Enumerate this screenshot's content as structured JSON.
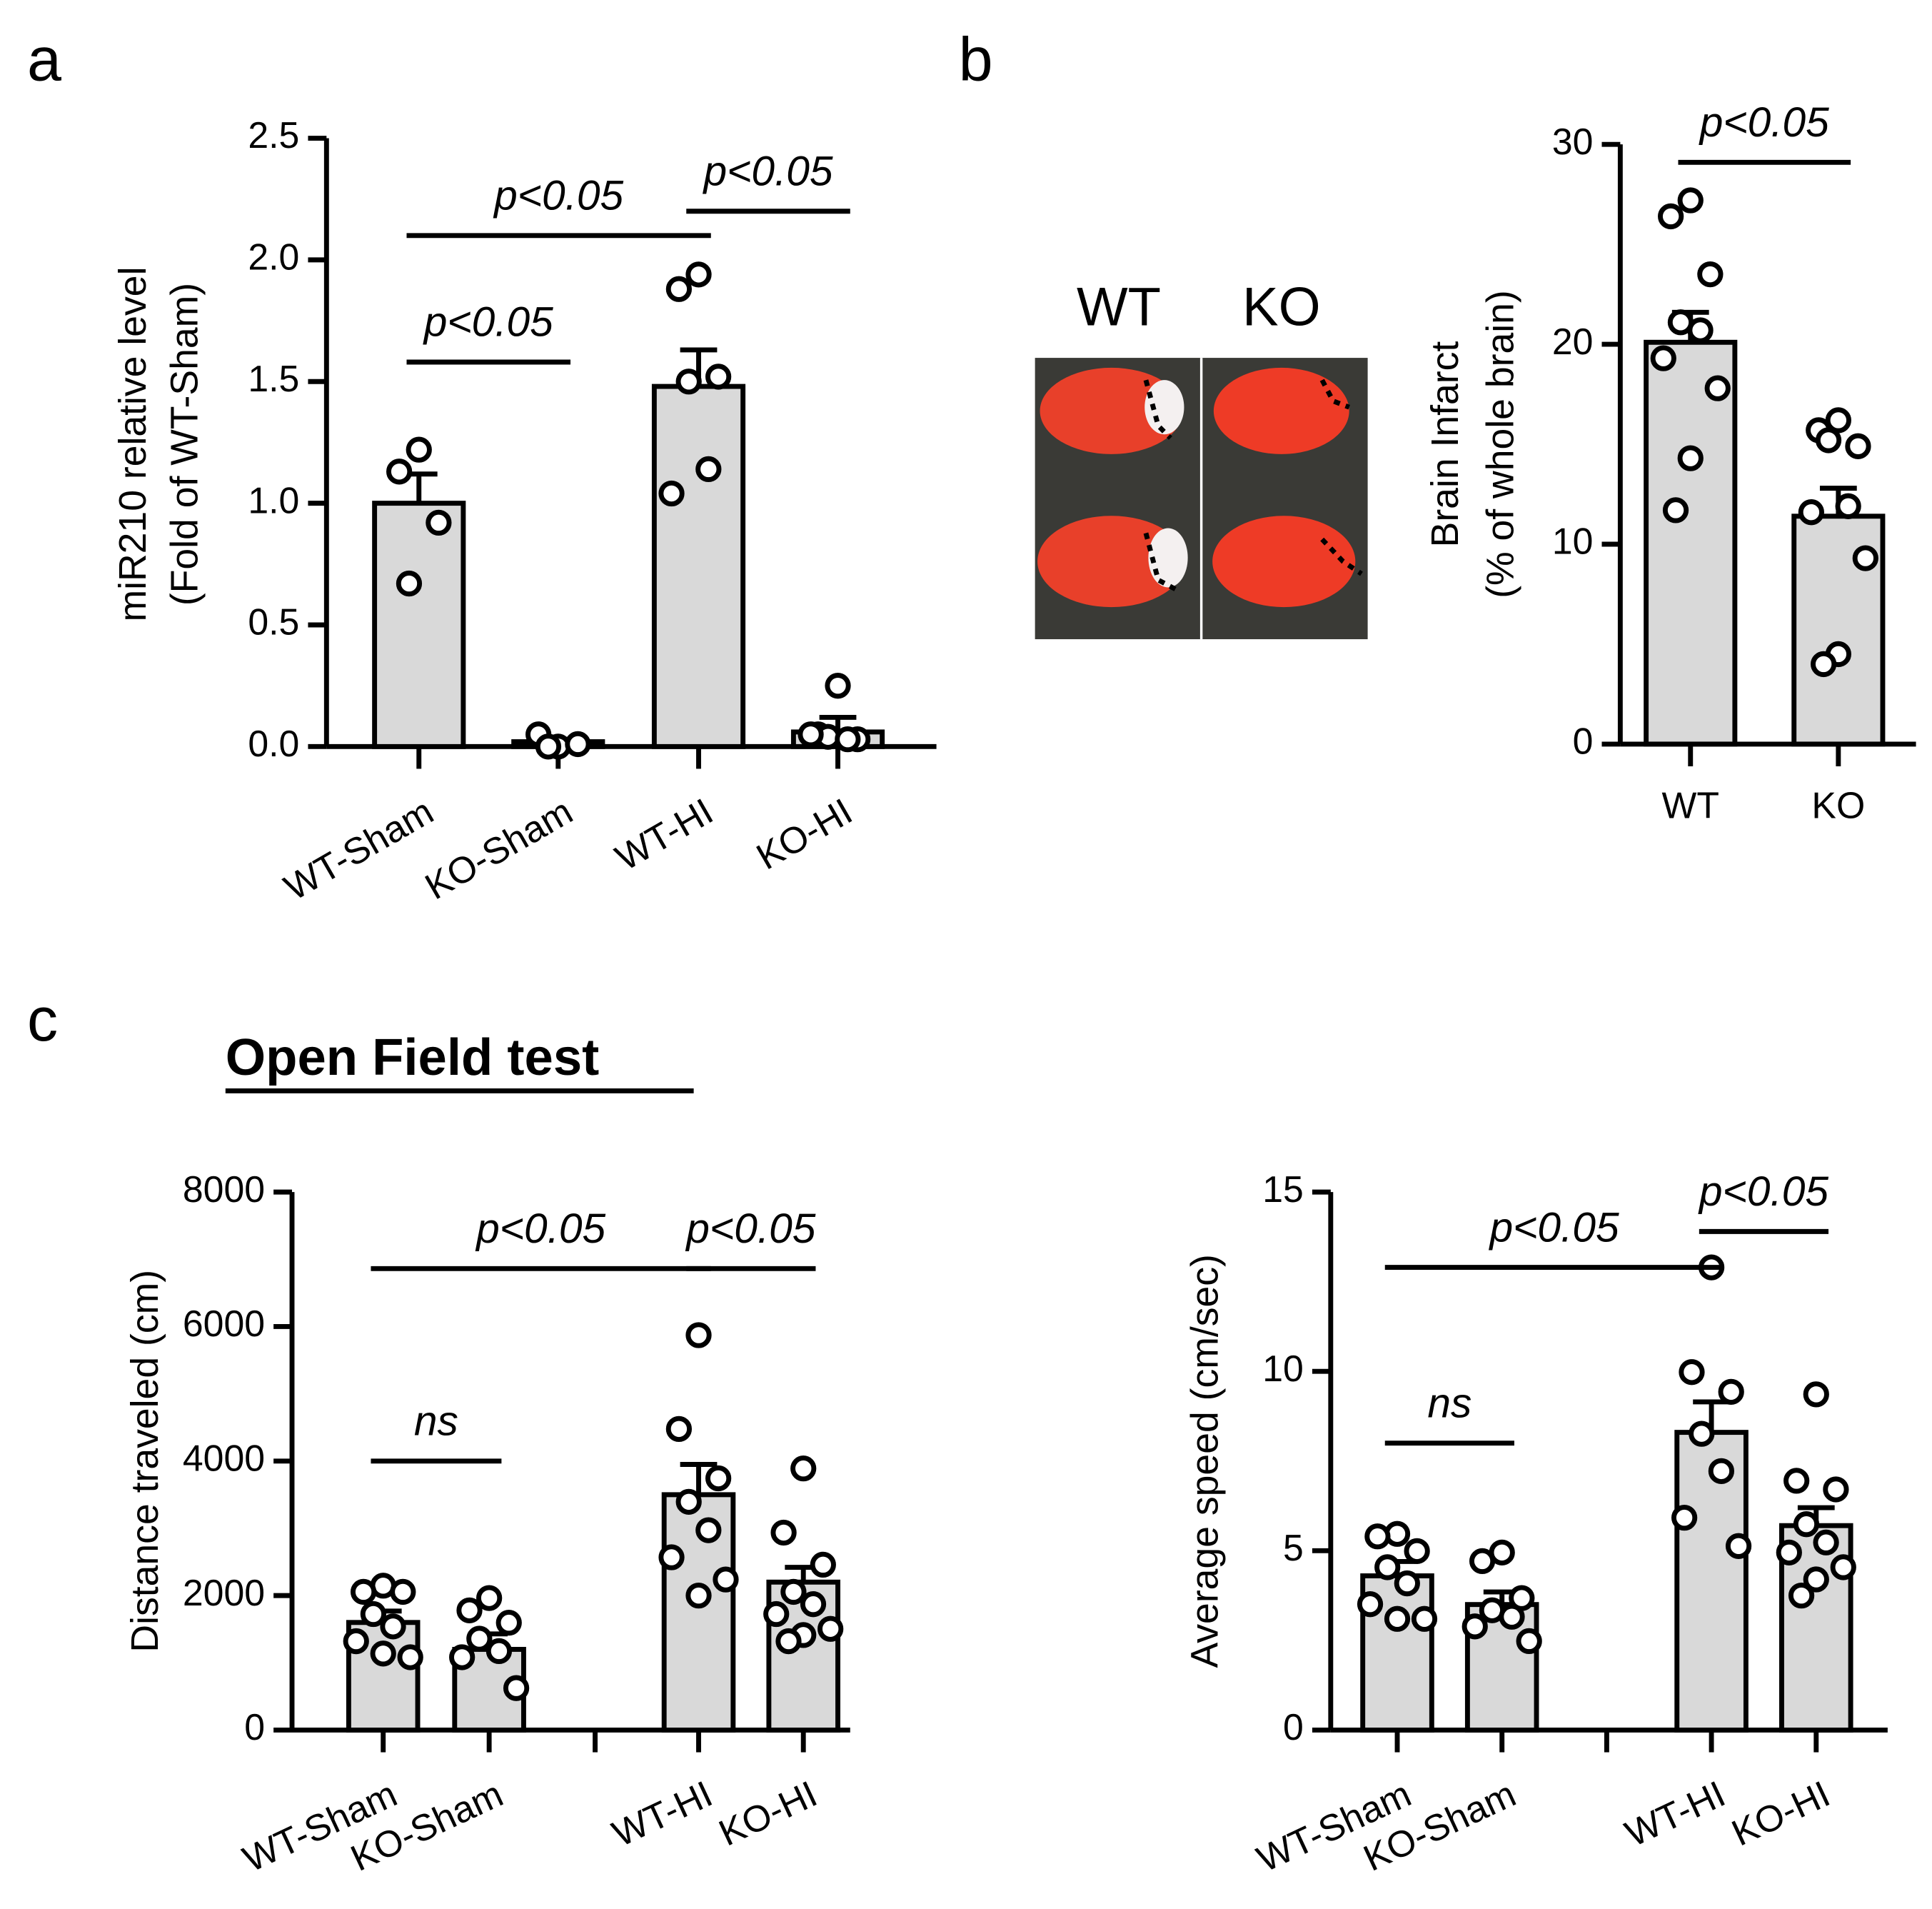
{
  "section_title": "Open Field test",
  "image_labels": [
    "WT",
    "KO"
  ],
  "chart_data": [
    {
      "panel": "a",
      "type": "bar",
      "color": "#d9d9d9",
      "ylabel": [
        "miR210 relative level",
        "(Fold of WT-Sham)"
      ],
      "categories": [
        "WT-Sham",
        "KO-Sham",
        "WT-HI",
        "KO-HI"
      ],
      "values": [
        1.0,
        0.02,
        1.48,
        0.06
      ],
      "errors": [
        0.12,
        0.01,
        0.15,
        0.06
      ],
      "points": [
        [
          1.22,
          1.13,
          0.92,
          0.67
        ],
        [
          0.0,
          0.05,
          0.01,
          0.0
        ],
        [
          1.94,
          1.88,
          1.52,
          1.5,
          1.14,
          1.04
        ],
        [
          0.25,
          0.05,
          0.03,
          0.04,
          0.03,
          0.05
        ]
      ],
      "ylim": [
        0,
        2.5
      ],
      "yticks": [
        {
          "value": 0,
          "label": "0.0"
        },
        0.5,
        {
          "value": 1,
          "label": "1.0"
        },
        1.5,
        {
          "value": 2,
          "label": "2.0"
        },
        2.5
      ],
      "annotations": [
        {
          "label": "p<0.05",
          "from": 0,
          "to": 2,
          "y": 2.1
        },
        {
          "label": "p<0.05",
          "from": 0,
          "to": 1,
          "y": 1.58
        },
        {
          "label": "p<0.05",
          "from": 2,
          "to": 3,
          "y": 2.2
        }
      ]
    },
    {
      "panel": "b",
      "type": "bar",
      "color": "#d9d9d9",
      "ylabel": [
        "Brain Infarct",
        "(% of whole brain)"
      ],
      "categories": [
        "WT",
        "KO"
      ],
      "values": [
        20.1,
        11.4
      ],
      "errors": [
        1.5,
        1.4
      ],
      "points": [
        [
          27.2,
          26.4,
          23.5,
          21.1,
          20.7,
          19.3,
          17.8,
          14.3,
          11.7
        ],
        [
          16.2,
          15.7,
          14.9,
          15.2,
          11.9,
          11.6,
          9.3,
          4.5,
          4.0
        ]
      ],
      "ylim": [
        0,
        30
      ],
      "yticks": [
        0,
        10,
        20,
        30
      ],
      "annotations": [
        {
          "label": "p<0.05",
          "from": 0,
          "to": 1,
          "y": 29.1
        }
      ]
    },
    {
      "panel": "c",
      "type": "bar",
      "color": "#d9d9d9",
      "ylabel": [
        "Distance traveled (cm)"
      ],
      "categories": [
        "WT-Sham",
        "KO-Sham",
        null,
        "WT-HI",
        "KO-HI"
      ],
      "values": [
        1600,
        1200,
        null,
        3500,
        2200
      ],
      "errors": [
        170,
        230,
        null,
        450,
        220
      ],
      "points": [
        [
          2147,
          2055,
          2055,
          1725,
          1541,
          1321,
          1083,
          1138
        ],
        [
          1963,
          1780,
          1596,
          1358,
          1174,
          1083,
          624
        ],
        [],
        [
          5872,
          4477,
          3743,
          3394,
          2972,
          2569,
          2239,
          2000
        ],
        [
          3890,
          2936,
          2459,
          2055,
          1872,
          1725,
          1505,
          1413,
          1321
        ]
      ],
      "ylim": [
        0,
        8000
      ],
      "yticks": [
        0,
        2000,
        4000,
        6000,
        8000
      ],
      "annotations": [
        {
          "label": "p<0.05",
          "from": 0,
          "to": 3,
          "y": 6862
        },
        {
          "label": "p<0.05",
          "from": 3,
          "to": 4,
          "y": 6862
        },
        {
          "label": "ns",
          "from": 0,
          "to": 1,
          "y": 4000
        }
      ]
    },
    {
      "type": "bar",
      "color": "#d9d9d9",
      "ylabel": [
        "Average speed (cm/sec)"
      ],
      "categories": [
        "WT-Sham",
        "KO-Sham",
        null,
        "WT-HI",
        "KO-HI"
      ],
      "values": [
        4.3,
        3.5,
        null,
        8.3,
        5.7
      ],
      "errors": [
        0.4,
        0.35,
        null,
        0.85,
        0.5
      ],
      "points": [
        [
          5.47,
          5.4,
          4.99,
          4.54,
          4.09,
          3.51,
          3.1,
          3.1
        ],
        [
          4.95,
          4.71,
          3.68,
          3.34,
          3.16,
          2.89,
          2.48
        ],
        [],
        [
          12.9,
          9.98,
          9.43,
          8.26,
          7.22,
          5.92,
          5.13
        ],
        [
          9.36,
          6.95,
          6.71,
          5.74,
          5.23,
          4.95,
          4.54,
          4.2,
          3.75
        ]
      ],
      "ylim": [
        0,
        15
      ],
      "yticks": [
        0,
        5,
        10,
        15
      ],
      "annotations": [
        {
          "label": "p<0.05",
          "from": 0,
          "to": 3,
          "y": 12.9
        },
        {
          "label": "p<0.05",
          "from": 3,
          "to": 4,
          "y": 13.9
        },
        {
          "label": "ns",
          "from": 0,
          "to": 1,
          "y": 8
        }
      ]
    }
  ]
}
